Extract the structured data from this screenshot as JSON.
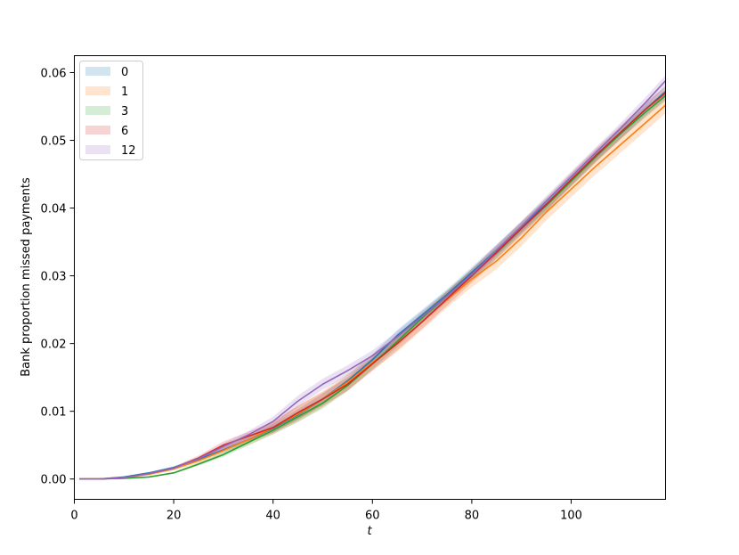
{
  "chart_data": {
    "type": "line",
    "xlabel": "t",
    "ylabel": "Bank proportion missed payments",
    "xlim": [
      0,
      119
    ],
    "ylim": [
      -0.003,
      0.0625
    ],
    "x_ticks": [
      0,
      20,
      40,
      60,
      80,
      100
    ],
    "y_ticks": [
      0.0,
      0.01,
      0.02,
      0.03,
      0.04,
      0.05,
      0.06
    ],
    "x_tick_labels": [
      "0",
      "20",
      "40",
      "60",
      "80",
      "100"
    ],
    "y_tick_labels": [
      "0.00",
      "0.01",
      "0.02",
      "0.03",
      "0.04",
      "0.05",
      "0.06"
    ],
    "grid": false,
    "legend_position": "upper-left",
    "legend_style": "shaded bands (confidence intervals)",
    "x": [
      1,
      5,
      10,
      15,
      20,
      25,
      30,
      35,
      40,
      45,
      50,
      55,
      60,
      65,
      70,
      75,
      80,
      85,
      90,
      95,
      100,
      105,
      110,
      115,
      119
    ],
    "series": [
      {
        "name": "0",
        "color": "#1f77b4",
        "values": [
          0.0,
          0.0,
          0.0003,
          0.0009,
          0.0017,
          0.0029,
          0.0043,
          0.0058,
          0.0075,
          0.0095,
          0.0118,
          0.0145,
          0.0176,
          0.0212,
          0.0242,
          0.0272,
          0.0305,
          0.0338,
          0.0372,
          0.0406,
          0.0442,
          0.0478,
          0.0512,
          0.0546,
          0.0572
        ],
        "band_halfwidth": 0.0008
      },
      {
        "name": "1",
        "color": "#ff7f0e",
        "values": [
          0.0,
          0.0,
          0.0002,
          0.0007,
          0.0015,
          0.0027,
          0.0042,
          0.0058,
          0.0076,
          0.0096,
          0.0118,
          0.0143,
          0.0172,
          0.02,
          0.0232,
          0.0265,
          0.0295,
          0.0322,
          0.0356,
          0.0394,
          0.0428,
          0.0462,
          0.0494,
          0.0526,
          0.0552
        ],
        "band_halfwidth": 0.0012
      },
      {
        "name": "3",
        "color": "#2ca02c",
        "values": [
          0.0,
          0.0,
          0.0001,
          0.0003,
          0.0009,
          0.0022,
          0.0036,
          0.0054,
          0.0072,
          0.0092,
          0.0112,
          0.0138,
          0.017,
          0.0203,
          0.0238,
          0.027,
          0.0302,
          0.0334,
          0.037,
          0.0404,
          0.044,
          0.0476,
          0.051,
          0.0542,
          0.0566
        ],
        "band_halfwidth": 0.0008
      },
      {
        "name": "6",
        "color": "#d62728",
        "values": [
          0.0,
          0.0,
          0.0002,
          0.0008,
          0.0016,
          0.0031,
          0.005,
          0.0063,
          0.0076,
          0.0098,
          0.0118,
          0.014,
          0.017,
          0.02,
          0.0232,
          0.0266,
          0.03,
          0.0335,
          0.037,
          0.0405,
          0.0442,
          0.0478,
          0.0512,
          0.0546,
          0.057
        ],
        "band_halfwidth": 0.001
      },
      {
        "name": "12",
        "color": "#9467bd",
        "values": [
          0.0,
          0.0,
          0.0002,
          0.0008,
          0.0016,
          0.003,
          0.0048,
          0.0065,
          0.0085,
          0.0115,
          0.014,
          0.016,
          0.0182,
          0.021,
          0.024,
          0.027,
          0.0302,
          0.0338,
          0.0373,
          0.041,
          0.0446,
          0.0482,
          0.0518,
          0.0556,
          0.0588
        ],
        "band_halfwidth": 0.0008
      }
    ]
  }
}
